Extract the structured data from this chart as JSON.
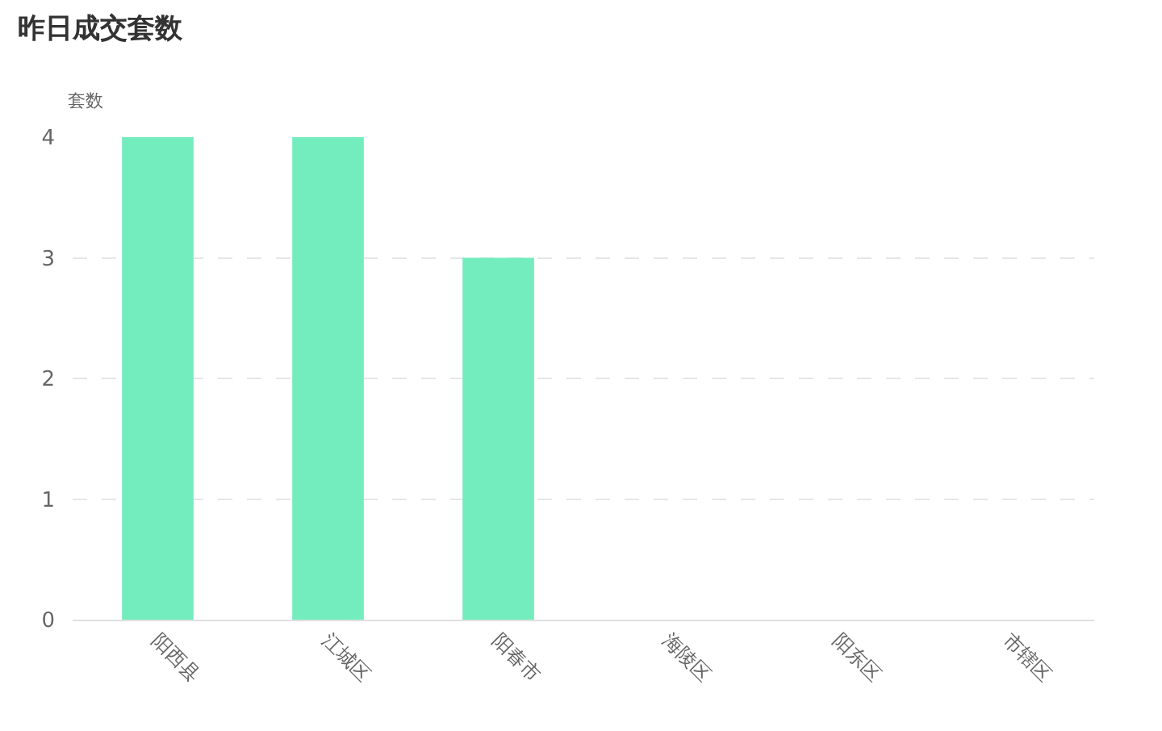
{
  "chart_data": {
    "type": "bar",
    "title": "昨日成交套数",
    "ylabel": "套数",
    "categories": [
      "阳西县",
      "江城区",
      "阳春市",
      "海陵区",
      "阳东区",
      "市辖区"
    ],
    "values": [
      4,
      4,
      3,
      0,
      0,
      0
    ],
    "color": "#73ecbe",
    "ylim": [
      0,
      4
    ],
    "yticks": [
      0,
      1,
      2,
      3,
      4
    ],
    "grid": "y"
  }
}
